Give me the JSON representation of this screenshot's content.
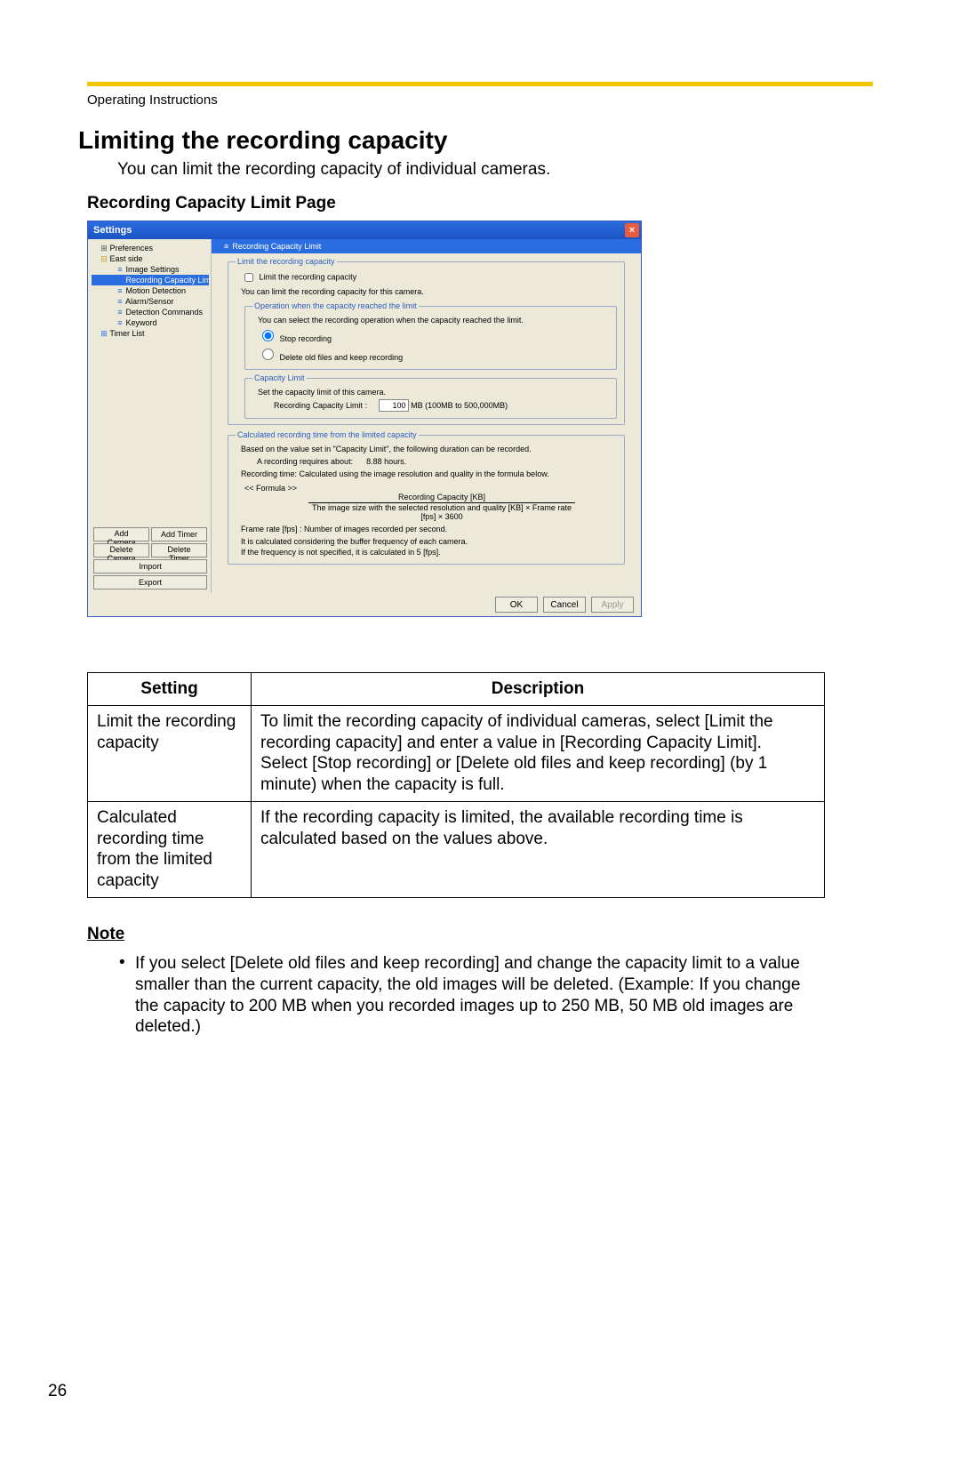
{
  "page": {
    "header_label": "Operating Instructions",
    "title": "Limiting the recording capacity",
    "intro": "You can limit the recording capacity of individual cameras.",
    "subhead": "Recording Capacity Limit Page",
    "number": "26"
  },
  "dialog": {
    "title": "Settings",
    "close_glyph": "×",
    "tree": [
      {
        "label": "Preferences",
        "indent": 1,
        "icon": "⊞",
        "iconClass": "tree-icon"
      },
      {
        "label": "East side",
        "indent": 1,
        "icon": "⊟",
        "iconClass": "tree-icon fold"
      },
      {
        "label": "Image Settings",
        "indent": 2,
        "icon": "≡",
        "iconClass": "tree-icon lines"
      },
      {
        "label": "Recording Capacity Limit",
        "indent": 2,
        "icon": "≡",
        "iconClass": "tree-icon lines",
        "selected": true
      },
      {
        "label": "Motion Detection",
        "indent": 2,
        "icon": "≡",
        "iconClass": "tree-icon lines"
      },
      {
        "label": "Alarm/Sensor",
        "indent": 2,
        "icon": "≡",
        "iconClass": "tree-icon lines"
      },
      {
        "label": "Detection Commands",
        "indent": 2,
        "icon": "≡",
        "iconClass": "tree-icon lines"
      },
      {
        "label": "Keyword",
        "indent": 2,
        "icon": "≡",
        "iconClass": "tree-icon lines"
      },
      {
        "label": "Timer List",
        "indent": 1,
        "icon": "⊞",
        "iconClass": "tree-icon lines"
      }
    ],
    "left_buttons": {
      "add_camera": "Add Camera",
      "add_timer": "Add Timer",
      "delete_camera": "Delete Camera",
      "delete_timer": "Delete Timer",
      "import": "Import",
      "export": "Export"
    },
    "right_tab": "Recording Capacity Limit",
    "limit_group_title": "Limit the recording capacity",
    "limit_cb_label": "Limit the recording capacity",
    "limit_desc": "You can limit the recording capacity for this camera.",
    "op_group_title": "Operation when the capacity reached the limit",
    "op_desc": "You can select the recording operation when the capacity reached the limit.",
    "op_radio1": "Stop recording",
    "op_radio2": "Delete old files and keep recording",
    "cap_group_title": "Capacity Limit",
    "cap_desc": "Set the capacity limit of this camera.",
    "cap_label": "Recording Capacity Limit :",
    "cap_value": "100",
    "cap_unit": "MB  (100MB to 500,000MB)",
    "calc_group_title": "Calculated recording time from the limited capacity",
    "calc_desc": "Based on the value set in \"Capacity Limit\", the following duration can be recorded.",
    "calc_row_label": "A recording requires about:",
    "calc_row_value": "8.88  hours.",
    "calc_note": "Recording time: Calculated using the image resolution and quality in the formula below.",
    "formula_label": "<< Formula >>",
    "formula_top": "Recording Capacity [KB]",
    "formula_bottom": "The image size with the selected resolution and quality [KB] × Frame rate [fps] × 3600",
    "fps_note": "Frame rate [fps] : Number of images recorded per second.",
    "fps_note2": "It is calculated considering the buffer frequency of each camera.\nIf the frequency is not specified, it is calculated in 5 [fps].",
    "footer": {
      "ok": "OK",
      "cancel": "Cancel",
      "apply": "Apply"
    }
  },
  "table": {
    "col1": "Setting",
    "col2": "Description",
    "rows": [
      {
        "s": "Limit the recording capacity",
        "d": "To limit the recording capacity of individual cameras, select [Limit the recording capacity] and enter a value in [Recording Capacity Limit].\nSelect [Stop recording] or [Delete old files and keep recording] (by 1 minute) when the capacity is full."
      },
      {
        "s": "Calculated recording time from the limited capacity",
        "d": "If the recording capacity is limited, the available recording time is calculated based on the values above."
      }
    ]
  },
  "note": {
    "heading": "Note",
    "text": "If you select [Delete old files and keep recording] and change the capacity limit to a value smaller than the current capacity, the old images will be deleted. (Example: If you change the capacity to 200 MB when you recorded images up to 250 MB, 50 MB old images are deleted.)"
  }
}
